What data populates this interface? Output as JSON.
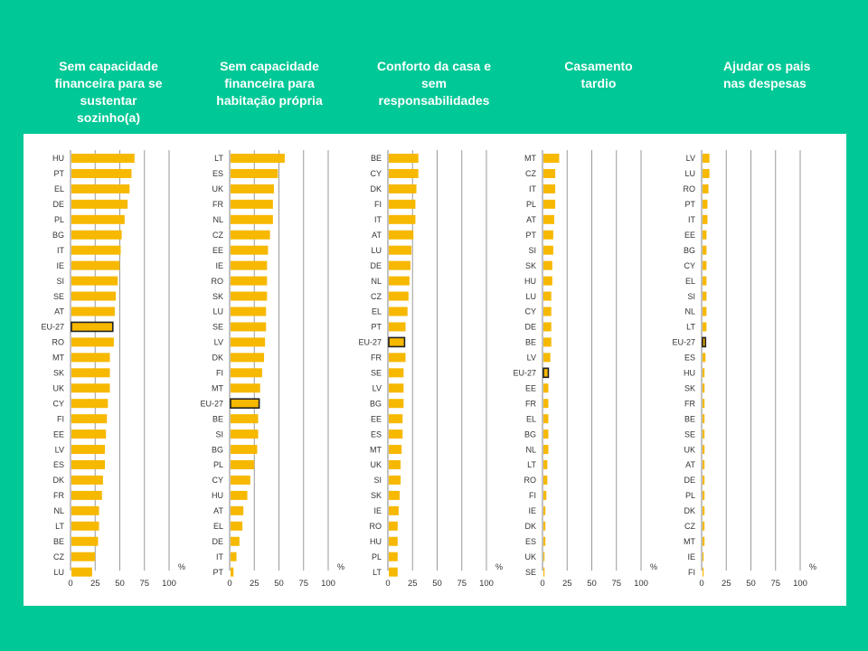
{
  "colors": {
    "background": "#00c896",
    "panel": "#ffffff",
    "bar": "#f7b800",
    "highlight_border": "#222222",
    "grid": "#9a9a9a"
  },
  "headers": [
    "Sem capacidade\nfinanceira para se\nsustentar\nsozinho(a)",
    "Sem capacidade\nfinanceira para\nhabitação própria",
    "Conforto da casa e\nsem\nresponsabilidades",
    "Casamento\ntardio",
    "Ajudar os pais\nnas despesas"
  ],
  "chart_data": [
    {
      "type": "bar",
      "title": "Sem capacidade financeira para se sustentar sozinho(a)",
      "orientation": "horizontal",
      "unit_label": "%",
      "xlim": [
        0,
        100
      ],
      "xticks": [
        0,
        25,
        50,
        75,
        100
      ],
      "highlight": "EU-27",
      "categories": [
        "HU",
        "PT",
        "EL",
        "DE",
        "PL",
        "BG",
        "IT",
        "IE",
        "SI",
        "SE",
        "AT",
        "EU-27",
        "RO",
        "MT",
        "SK",
        "UK",
        "CY",
        "FI",
        "EE",
        "LV",
        "ES",
        "DK",
        "FR",
        "NL",
        "LT",
        "BE",
        "CZ",
        "LU"
      ],
      "values": [
        64,
        61,
        59,
        57,
        54,
        51,
        50,
        49,
        47,
        45,
        44,
        42,
        43,
        39,
        39,
        39,
        37,
        36,
        35,
        34,
        34,
        32,
        31,
        28,
        28,
        27,
        24,
        21
      ]
    },
    {
      "type": "bar",
      "title": "Sem capacidade financeira para habitação própria",
      "orientation": "horizontal",
      "unit_label": "%",
      "xlim": [
        0,
        100
      ],
      "xticks": [
        0,
        25,
        50,
        75,
        100
      ],
      "highlight": "EU-27",
      "categories": [
        "LT",
        "ES",
        "UK",
        "FR",
        "NL",
        "CZ",
        "EE",
        "IE",
        "RO",
        "SK",
        "LU",
        "SE",
        "LV",
        "DK",
        "FI",
        "MT",
        "EU-27",
        "BE",
        "SI",
        "BG",
        "PL",
        "CY",
        "HU",
        "AT",
        "EL",
        "DE",
        "IT",
        "PT"
      ],
      "values": [
        55,
        48,
        44,
        43,
        43,
        40,
        38,
        37,
        37,
        37,
        36,
        36,
        35,
        34,
        32,
        30,
        29,
        28,
        28,
        27,
        24,
        20,
        17,
        13,
        12,
        9,
        6,
        3
      ]
    },
    {
      "type": "bar",
      "title": "Conforto da casa e sem responsabilidades",
      "orientation": "horizontal",
      "unit_label": "%",
      "xlim": [
        0,
        100
      ],
      "xticks": [
        0,
        25,
        50,
        75,
        100
      ],
      "highlight": "EU-27",
      "categories": [
        "BE",
        "CY",
        "DK",
        "FI",
        "IT",
        "AT",
        "LU",
        "DE",
        "NL",
        "CZ",
        "EL",
        "PT",
        "EU-27",
        "FR",
        "SE",
        "LV",
        "BG",
        "EE",
        "ES",
        "MT",
        "UK",
        "SI",
        "SK",
        "IE",
        "RO",
        "HU",
        "PL",
        "LT"
      ],
      "values": [
        30,
        30,
        28,
        27,
        27,
        25,
        23,
        22,
        21,
        20,
        19,
        17,
        16,
        17,
        15,
        15,
        15,
        14,
        14,
        13,
        12,
        12,
        11,
        10,
        9,
        9,
        9,
        9
      ]
    },
    {
      "type": "bar",
      "title": "Casamento tardio",
      "orientation": "horizontal",
      "unit_label": "%",
      "xlim": [
        0,
        100
      ],
      "xticks": [
        0,
        25,
        50,
        75,
        100
      ],
      "highlight": "EU-27",
      "categories": [
        "MT",
        "CZ",
        "IT",
        "PL",
        "AT",
        "PT",
        "SI",
        "SK",
        "HU",
        "LU",
        "CY",
        "DE",
        "BE",
        "LV",
        "EU-27",
        "EE",
        "FR",
        "EL",
        "BG",
        "NL",
        "LT",
        "RO",
        "FI",
        "IE",
        "DK",
        "ES",
        "UK",
        "SE"
      ],
      "values": [
        16,
        12,
        12,
        12,
        11,
        10,
        10,
        9,
        9,
        8,
        8,
        8,
        8,
        7,
        5,
        5,
        5,
        5,
        5,
        5,
        4,
        4,
        3,
        2,
        2,
        2,
        0.5,
        0.5
      ]
    },
    {
      "type": "bar",
      "title": "Ajudar os pais nas despesas",
      "orientation": "horizontal",
      "unit_label": "%",
      "xlim": [
        0,
        100
      ],
      "xticks": [
        0,
        25,
        50,
        75,
        100
      ],
      "highlight": "EU-27",
      "categories": [
        "LV",
        "LU",
        "RO",
        "PT",
        "IT",
        "EE",
        "BG",
        "CY",
        "EL",
        "SI",
        "NL",
        "LT",
        "EU-27",
        "ES",
        "HU",
        "SK",
        "FR",
        "BE",
        "SE",
        "UK",
        "AT",
        "DE",
        "PL",
        "DK",
        "CZ",
        "MT",
        "IE",
        "FI"
      ],
      "values": [
        7,
        7,
        6,
        5,
        5,
        4,
        4,
        4,
        4,
        4,
        4,
        4,
        3,
        3,
        2,
        2,
        2,
        2,
        2,
        2,
        2,
        2,
        2,
        2,
        2,
        2,
        1,
        1
      ]
    }
  ]
}
